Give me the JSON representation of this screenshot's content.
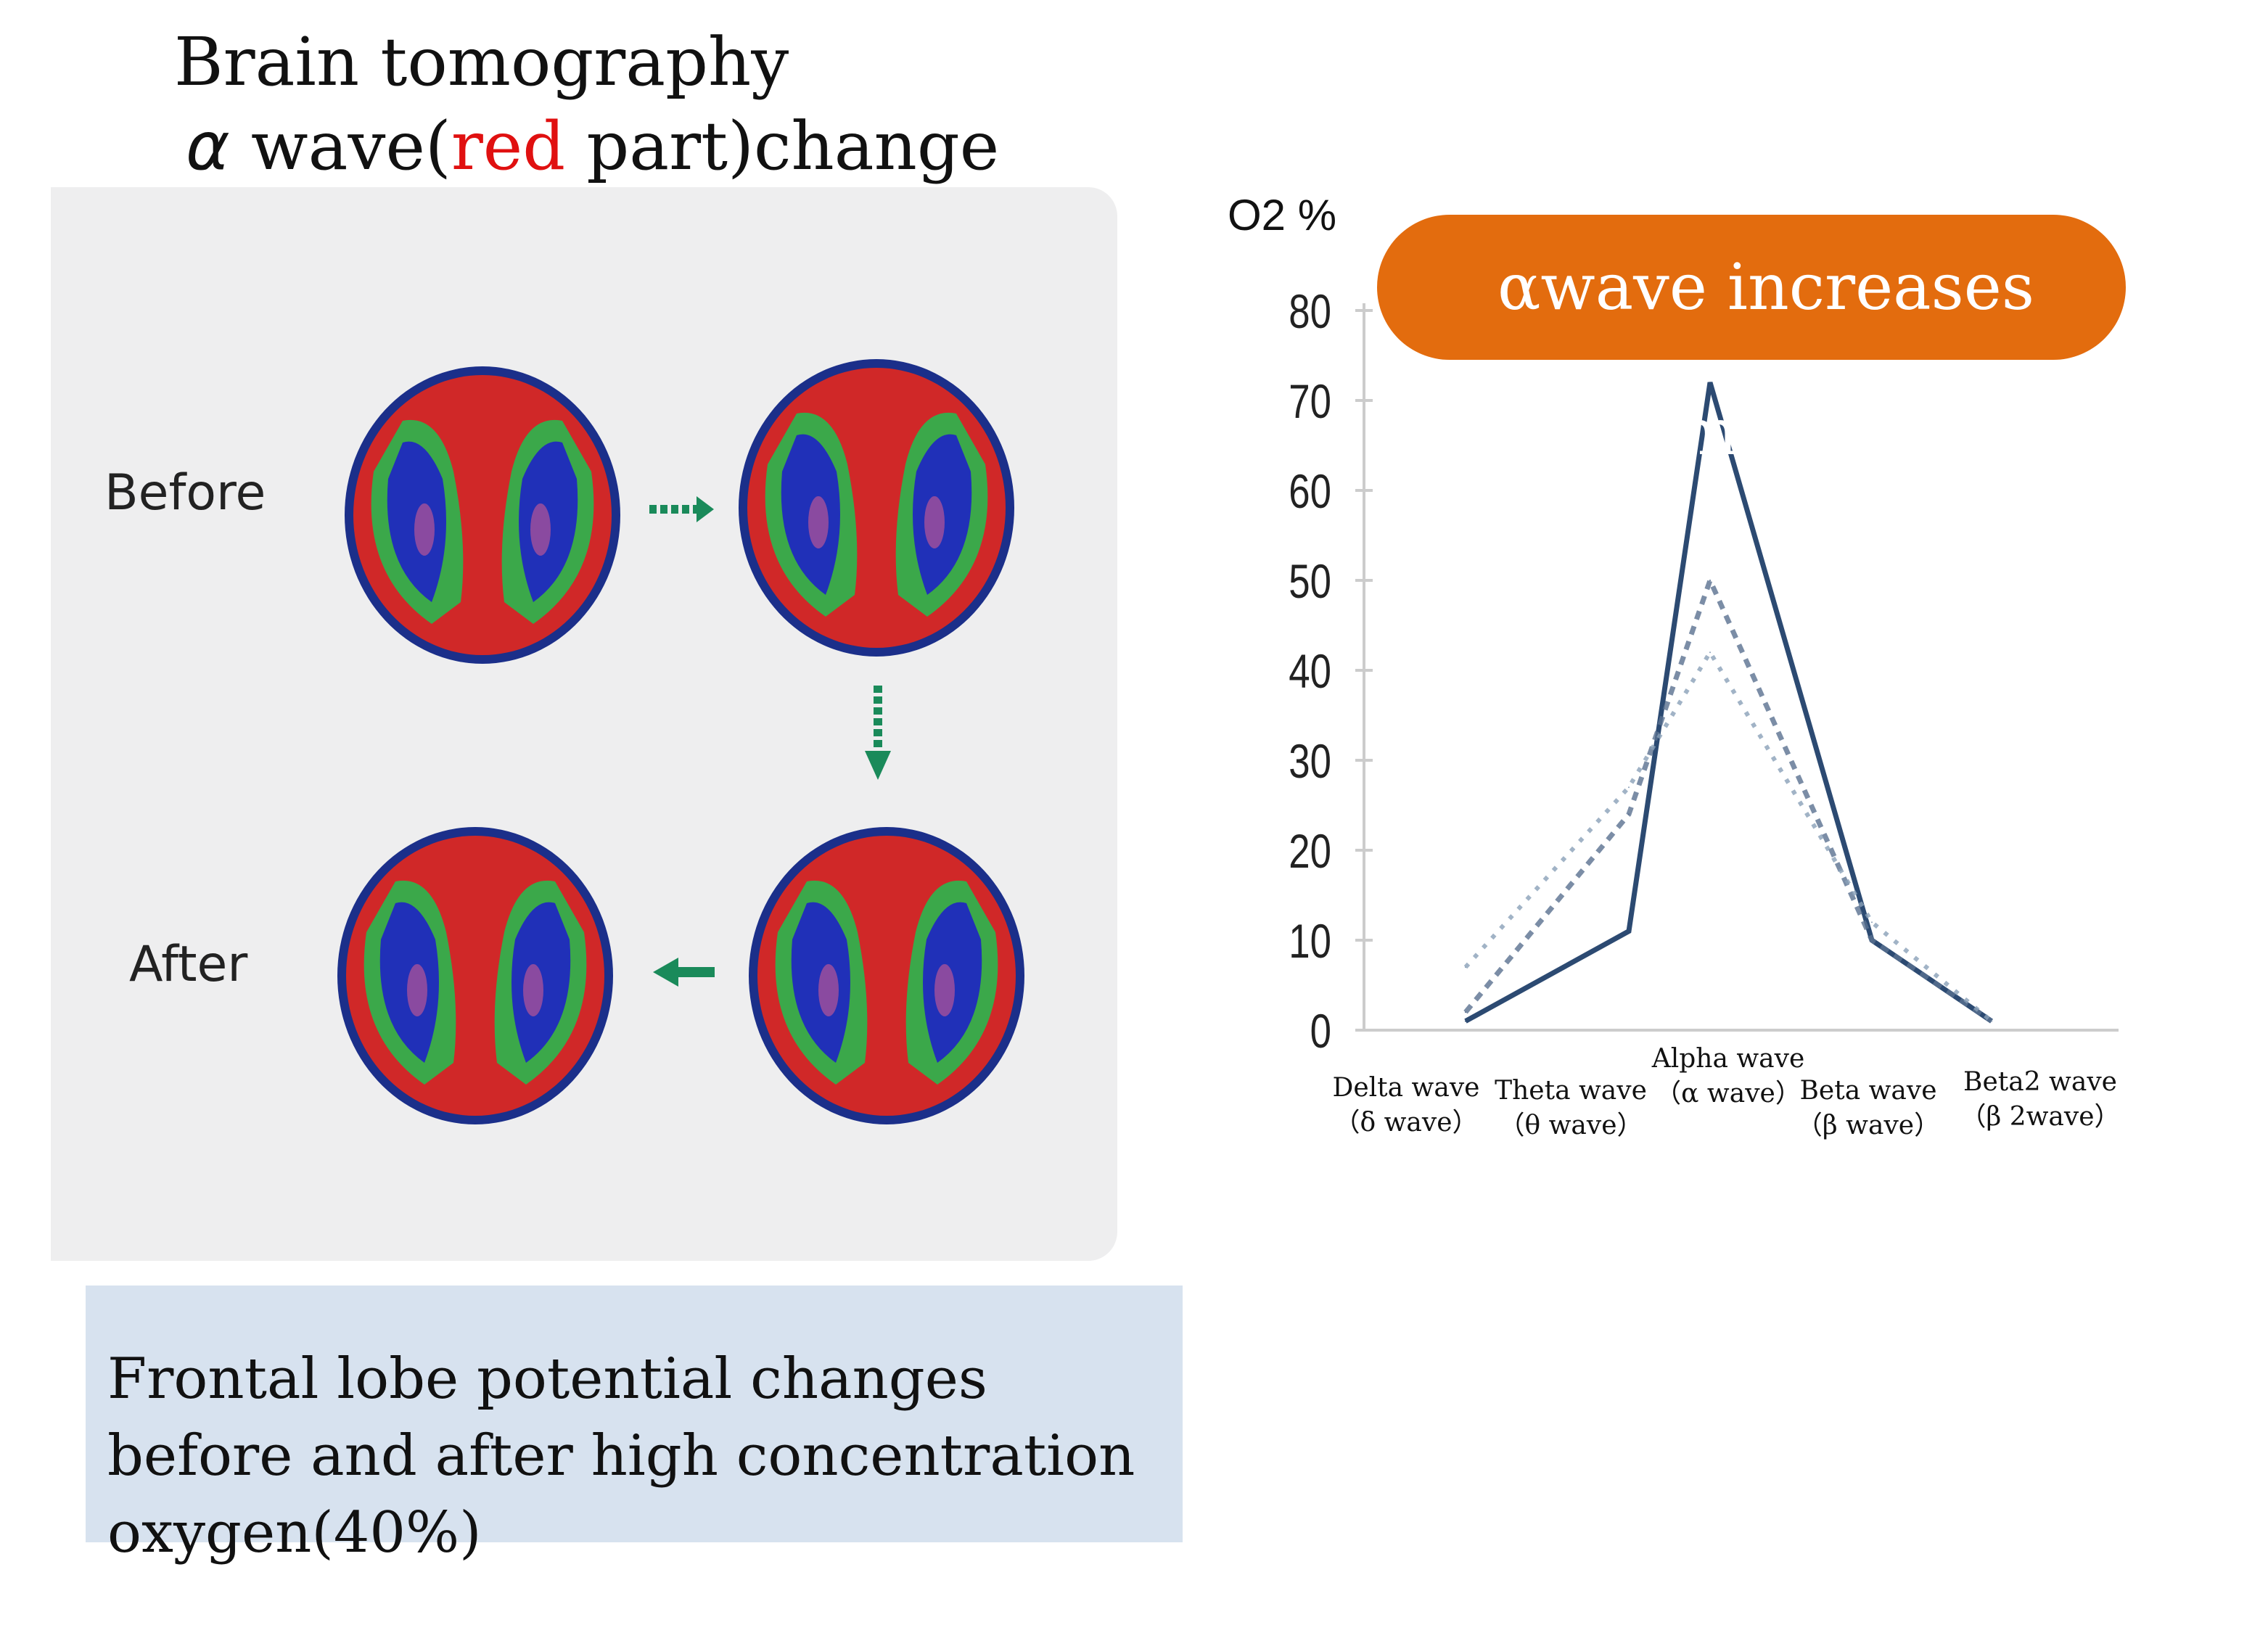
{
  "title": {
    "line1": "Brain tomography",
    "alpha": "α",
    "line2_a": " wave(",
    "line2_red": "red",
    "line2_b": " part)change"
  },
  "panel": {
    "before": "Before",
    "after": "After"
  },
  "caption": "Frontal lobe potential changes before and after high concentration oxygen(40%)",
  "callout": "αwave increases most.",
  "colors": {
    "callout": "#e36c0e",
    "caption_bg": "#d7e2ef",
    "series": "#2c4a72"
  },
  "chart_data": {
    "type": "line",
    "ylabel": "O2 %",
    "ylim": [
      0,
      80
    ],
    "yticks": [
      0,
      10,
      20,
      30,
      40,
      50,
      60,
      70,
      80
    ],
    "categories": [
      {
        "name": "Delta wave",
        "sub": "（δ wave）"
      },
      {
        "name": "Theta wave",
        "sub": "（θ wave）"
      },
      {
        "name": "Alpha wave",
        "sub": "（α wave）"
      },
      {
        "name": "Beta wave",
        "sub": "（β wave）"
      },
      {
        "name": "Beta2 wave",
        "sub": "（β 2wave）"
      }
    ],
    "series": [
      {
        "name": "solid",
        "style": "solid",
        "values": [
          1,
          11,
          72,
          10,
          1
        ]
      },
      {
        "name": "dashed",
        "style": "dashed",
        "values": [
          2,
          24,
          50,
          10,
          1
        ]
      },
      {
        "name": "dotted",
        "style": "dotted",
        "values": [
          7,
          27,
          42,
          12,
          1
        ]
      }
    ]
  }
}
